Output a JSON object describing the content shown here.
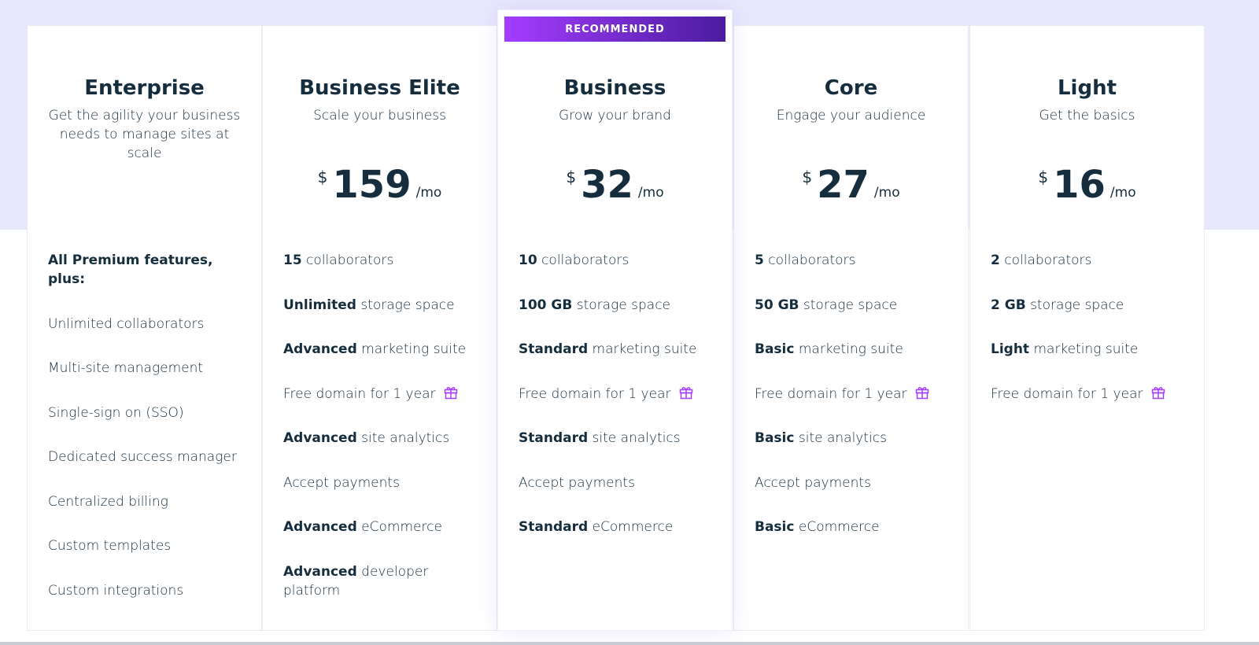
{
  "plans": [
    {
      "name": "Enterprise",
      "tagline": "Get the agility your business needs to manage sites at scale",
      "features": [
        {
          "bold": "All Premium features, plus:"
        },
        {
          "text": "Unlimited collaborators"
        },
        {
          "text": "Multi-site management"
        },
        {
          "text": "Single-sign on (SSO)"
        },
        {
          "text": "Dedicated success manager"
        },
        {
          "text": "Centralized billing"
        },
        {
          "text": "Custom templates"
        },
        {
          "text": "Custom integrations"
        }
      ]
    },
    {
      "name": "Business Elite",
      "tagline": "Scale your business",
      "price": {
        "currency": "$",
        "amount": 159,
        "period": "/mo"
      },
      "features": [
        {
          "bold": "15",
          "text": "collaborators"
        },
        {
          "bold": "Unlimited",
          "text": "storage space"
        },
        {
          "bold": "Advanced",
          "text": "marketing suite"
        },
        {
          "text": "Free domain for 1 year",
          "gift": true
        },
        {
          "bold": "Advanced",
          "text": "site analytics"
        },
        {
          "text": "Accept payments"
        },
        {
          "bold": "Advanced",
          "text": "eCommerce"
        },
        {
          "bold": "Advanced",
          "text": "developer platform"
        }
      ]
    },
    {
      "name": "Business",
      "tagline": "Grow your brand",
      "badge": "RECOMMENDED",
      "price": {
        "currency": "$",
        "amount": 32,
        "period": "/mo"
      },
      "features": [
        {
          "bold": "10",
          "text": "collaborators"
        },
        {
          "bold": "100 GB",
          "text": "storage space"
        },
        {
          "bold": "Standard",
          "text": "marketing suite"
        },
        {
          "text": "Free domain for 1 year",
          "gift": true
        },
        {
          "bold": "Standard",
          "text": "site analytics"
        },
        {
          "text": "Accept payments"
        },
        {
          "bold": "Standard",
          "text": "eCommerce"
        }
      ]
    },
    {
      "name": "Core",
      "tagline": "Engage your audience",
      "price": {
        "currency": "$",
        "amount": 27,
        "period": "/mo"
      },
      "features": [
        {
          "bold": "5",
          "text": "collaborators"
        },
        {
          "bold": "50 GB",
          "text": "storage space"
        },
        {
          "bold": "Basic",
          "text": "marketing suite"
        },
        {
          "text": "Free domain for 1 year",
          "gift": true
        },
        {
          "bold": "Basic",
          "text": "site analytics"
        },
        {
          "text": "Accept payments"
        },
        {
          "bold": "Basic",
          "text": "eCommerce"
        }
      ]
    },
    {
      "name": "Light",
      "tagline": "Get the basics",
      "price": {
        "currency": "$",
        "amount": 16,
        "period": "/mo"
      },
      "features": [
        {
          "bold": "2",
          "text": "collaborators"
        },
        {
          "bold": "2 GB",
          "text": "storage space"
        },
        {
          "bold": "Light",
          "text": "marketing suite"
        },
        {
          "text": "Free domain for 1 year",
          "gift": true
        }
      ]
    }
  ]
}
